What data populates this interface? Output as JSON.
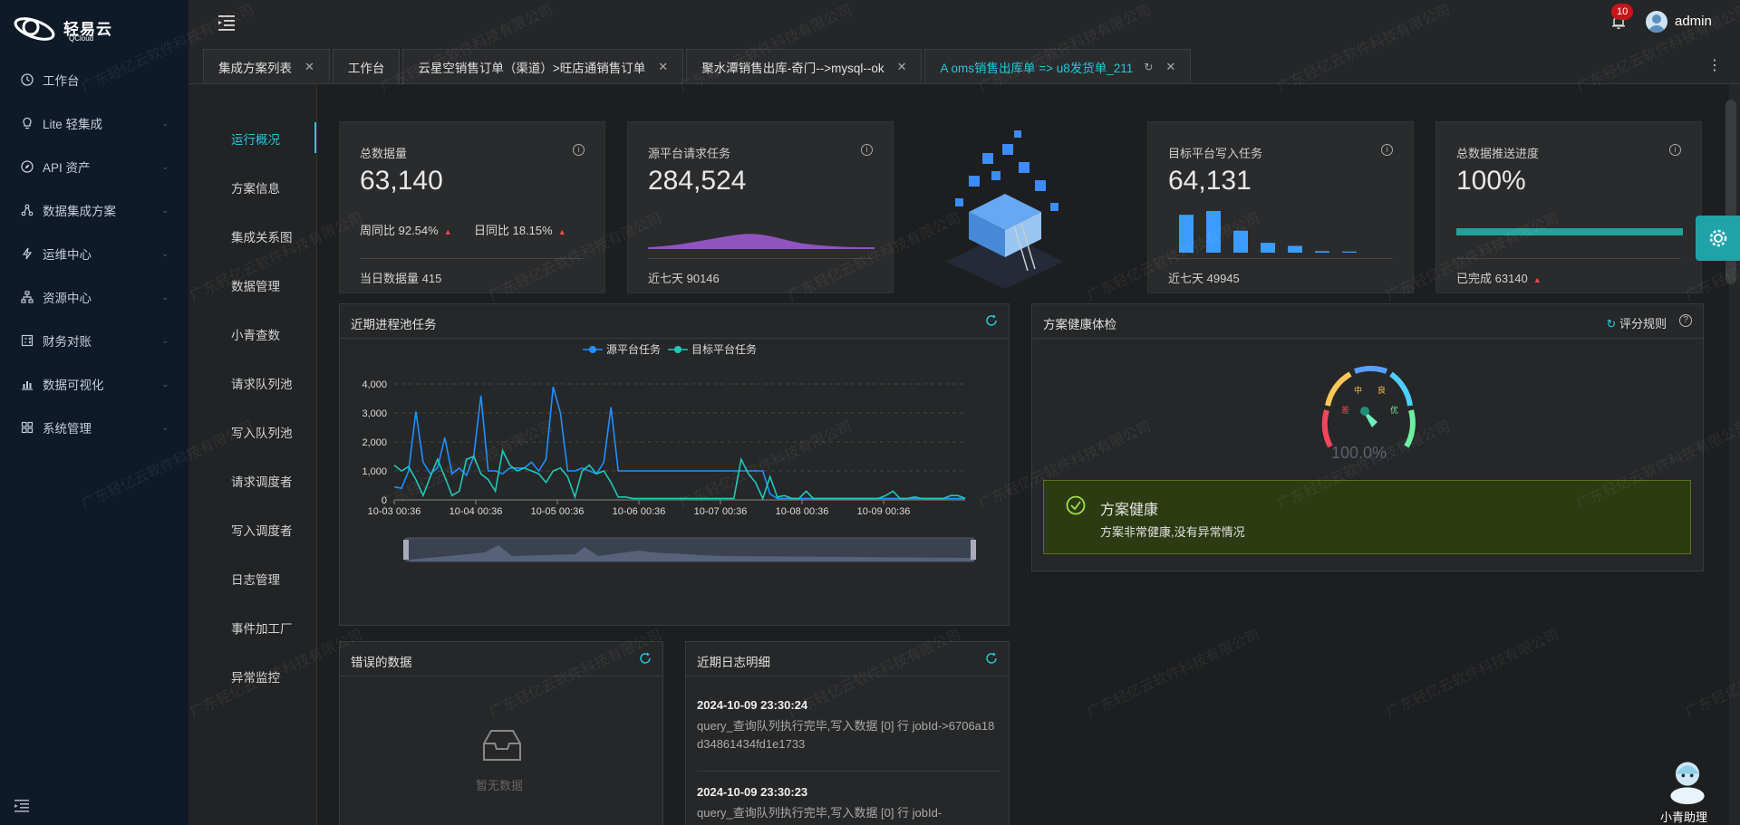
{
  "brand": {
    "name": "轻易云",
    "sub": "QCloud"
  },
  "sidebar": {
    "items": [
      {
        "label": "工作台",
        "icon": "clock-icon"
      },
      {
        "label": "Lite 轻集成",
        "icon": "bulb-icon"
      },
      {
        "label": "API 资产",
        "icon": "compass-icon"
      },
      {
        "label": "数据集成方案",
        "icon": "share-icon"
      },
      {
        "label": "运维中心",
        "icon": "bolt-icon"
      },
      {
        "label": "资源中心",
        "icon": "sitemap-icon"
      },
      {
        "label": "财务对账",
        "icon": "calculator-icon"
      },
      {
        "label": "数据可视化",
        "icon": "bar-chart-icon"
      },
      {
        "label": "系统管理",
        "icon": "grid-icon"
      }
    ]
  },
  "header": {
    "notifications": "10",
    "user": "admin"
  },
  "tabs": [
    {
      "label": "集成方案列表",
      "closable": true
    },
    {
      "label": "工作台",
      "closable": false
    },
    {
      "label": "云星空销售订单（渠道）>旺店通销售订单",
      "closable": true
    },
    {
      "label": "聚水潭销售出库-奇门-->mysql--ok",
      "closable": true
    },
    {
      "label": "A oms销售出库单 => u8发货单_211",
      "closable": true,
      "active": true
    }
  ],
  "subnav": [
    "运行概况",
    "方案信息",
    "集成关系图",
    "数据管理",
    "小青查数",
    "请求队列池",
    "写入队列池",
    "请求调度者",
    "写入调度者",
    "日志管理",
    "事件加工厂",
    "异常监控"
  ],
  "stats": {
    "total": {
      "title": "总数据量",
      "value": "63,140",
      "wow": "周同比 92.54%",
      "dod": "日同比 18.15%",
      "foot": "当日数据量  415"
    },
    "source": {
      "title": "源平台请求任务",
      "value": "284,524",
      "foot": "近七天  90146"
    },
    "target": {
      "title": "目标平台写入任务",
      "value": "64,131",
      "foot": "近七天  49945",
      "bars": [
        100,
        110,
        58,
        26,
        18,
        4,
        3
      ]
    },
    "progress": {
      "title": "总数据推送进度",
      "value": "100%",
      "foot": "已完成 63140",
      "fraction": 1.0
    }
  },
  "process_panel": {
    "title": "近期进程池任务"
  },
  "health_panel": {
    "title": "方案健康体检",
    "rule": "评分规则",
    "gauge_value": "100.0%",
    "gauge_labels": [
      "差",
      "中",
      "良",
      "优"
    ],
    "status_title": "方案健康",
    "status_desc": "方案非常健康,没有异常情况"
  },
  "error_panel": {
    "title": "错误的数据",
    "empty": "暂无数据"
  },
  "log_panel": {
    "title": "近期日志明细",
    "entries": [
      {
        "time": "2024-10-09 23:30:24",
        "msg": "query_查询队列执行完毕,写入数据 [0] 行 jobId->6706a18d34861434fd1e1733"
      },
      {
        "time": "2024-10-09 23:30:23",
        "msg": "query_查询队列执行完毕,写入数据 [0] 行 jobId-"
      }
    ]
  },
  "assistant": {
    "label": "小青助理"
  },
  "watermark": "广东轻亿云软件科技有限公司",
  "chart_data": {
    "type": "line",
    "legend": [
      "源平台任务",
      "目标平台任务"
    ],
    "yticks": [
      "4,000",
      "3,000",
      "2,000",
      "1,000",
      "0"
    ],
    "ylim": [
      0,
      4000
    ],
    "xticks": [
      "10-03 00:36",
      "10-04 00:36",
      "10-05 00:36",
      "10-06 00:36",
      "10-07 00:36",
      "10-08 00:36",
      "10-09 00:36"
    ],
    "series": [
      {
        "name": "源平台任务",
        "color": "#1e90ff",
        "values": [
          450,
          400,
          1000,
          3050,
          1300,
          900,
          1100,
          2150,
          900,
          1100,
          850,
          1500,
          3600,
          1000,
          1000,
          900,
          1100,
          1100,
          1100,
          1300,
          1000,
          1400,
          3900,
          3000,
          1000,
          1000,
          1100,
          1000,
          900,
          1300,
          3200,
          1000,
          1000,
          1000,
          1000,
          1000,
          1000,
          1000,
          1000,
          1000,
          1000,
          1000,
          1000,
          1000,
          1000,
          1000,
          1000,
          1000,
          1000,
          1000,
          1000,
          1000,
          200,
          50,
          50,
          50,
          50,
          50,
          50,
          50,
          50,
          50,
          50,
          50,
          50,
          50,
          50,
          50,
          50,
          50,
          50,
          50,
          50,
          50,
          50,
          50,
          50,
          50,
          50,
          50
        ]
      },
      {
        "name": "目标平台任务",
        "color": "#1ec9b8",
        "values": [
          1200,
          1000,
          1150,
          700,
          150,
          800,
          1400,
          800,
          150,
          300,
          1400,
          1500,
          900,
          700,
          300,
          1700,
          1200,
          1000,
          1100,
          1000,
          900,
          600,
          1000,
          1100,
          800,
          100,
          1000,
          1200,
          900,
          1000,
          600,
          100,
          100,
          50,
          50,
          50,
          50,
          50,
          50,
          50,
          50,
          50,
          50,
          50,
          50,
          50,
          50,
          50,
          1400,
          900,
          600,
          50,
          800,
          100,
          150,
          50,
          50,
          300,
          50,
          50,
          50,
          50,
          50,
          50,
          50,
          50,
          50,
          50,
          150,
          300,
          50,
          50,
          100,
          50,
          50,
          50,
          50,
          150,
          150,
          50
        ]
      }
    ]
  }
}
